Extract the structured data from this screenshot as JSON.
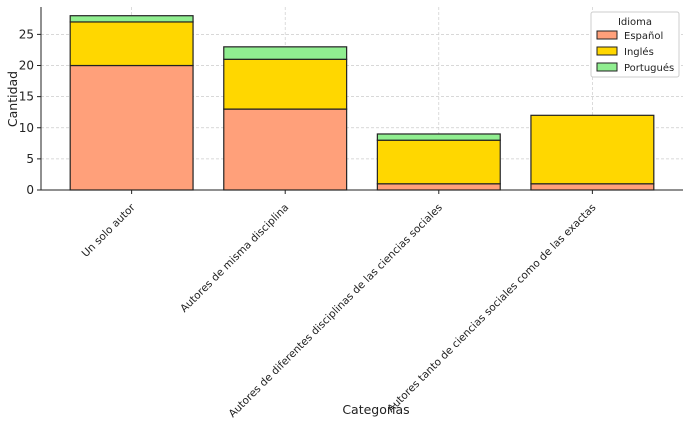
{
  "chart_data": {
    "type": "bar",
    "stacked": true,
    "title": "",
    "xlabel": "Categorías",
    "ylabel": "Cantidad",
    "ylim": [
      0,
      29.4
    ],
    "yticks": [
      0,
      5,
      10,
      15,
      20,
      25
    ],
    "grid": true,
    "legend": {
      "title": "Idioma",
      "placement": "top-right"
    },
    "categories": [
      "Un solo autor",
      "Autores de misma disciplina",
      "Autores de diferentes disciplinas de las ciencias sociales",
      "Autores tanto de ciencias sociales como de las exactas"
    ],
    "series": [
      {
        "name": "Español",
        "values": [
          20,
          13,
          1,
          1
        ],
        "color": "#FFA07A"
      },
      {
        "name": "Inglés",
        "values": [
          7,
          8,
          7,
          11
        ],
        "color": "#FFD700"
      },
      {
        "name": "Portugués",
        "values": [
          1,
          2,
          1,
          0
        ],
        "color": "#90EE90"
      }
    ]
  }
}
